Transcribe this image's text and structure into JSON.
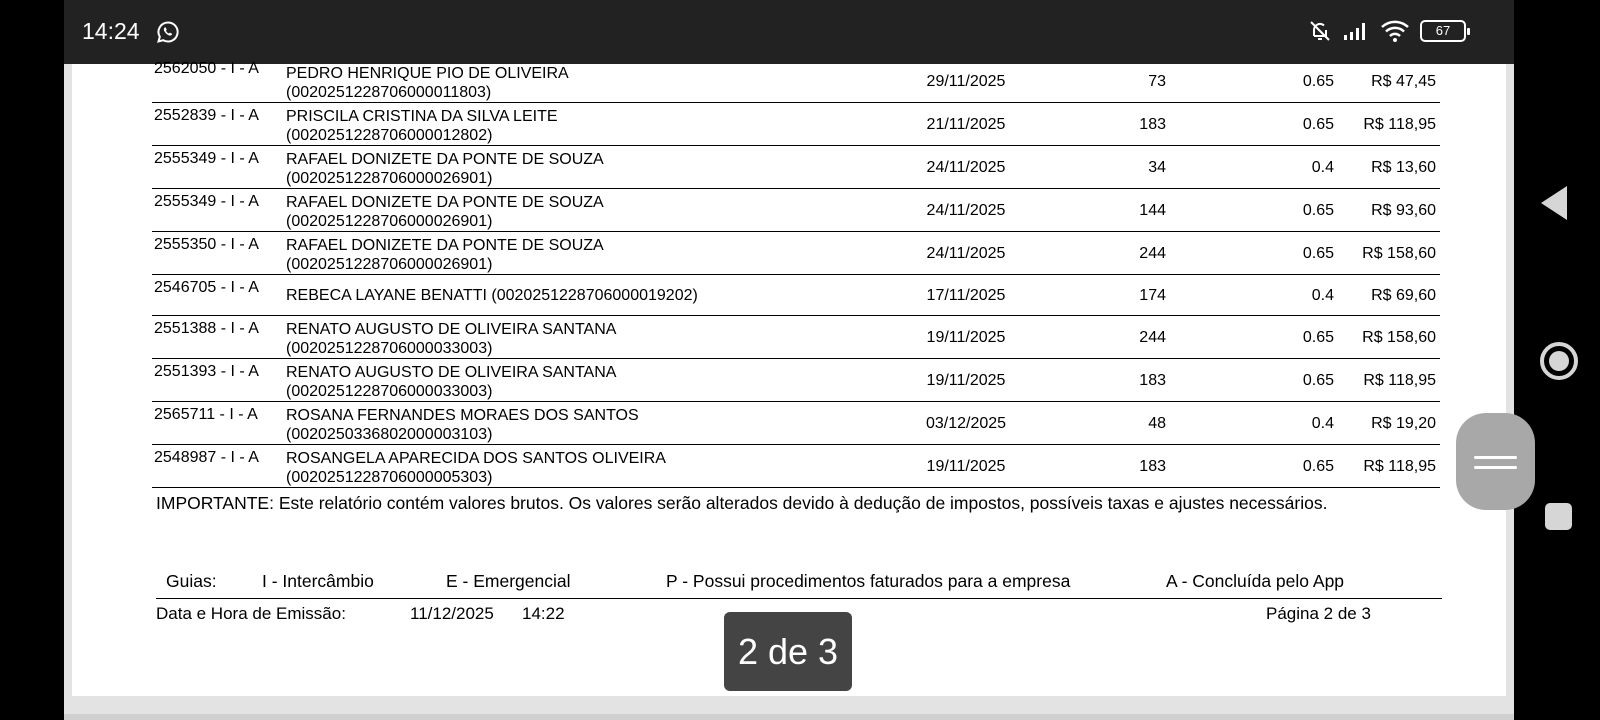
{
  "status_bar": {
    "time": "14:24",
    "battery": "67",
    "icons": [
      "whatsapp-icon",
      "bell-off-icon",
      "signal-icon",
      "wifi-icon",
      "battery-icon"
    ]
  },
  "rows": [
    {
      "code": "2562050 - I  - A",
      "name": "PEDRO HENRIQUE PIO DE OLIVEIRA",
      "card": "(0020251228706000011803)",
      "date": "29/11/2025",
      "qty": "73",
      "rate": "0.65",
      "value": "R$ 47,45"
    },
    {
      "code": "2552839 - I  - A",
      "name": "PRISCILA CRISTINA DA SILVA LEITE",
      "card": "(0020251228706000012802)",
      "date": "21/11/2025",
      "qty": "183",
      "rate": "0.65",
      "value": "R$ 118,95"
    },
    {
      "code": "2555349 - I  - A",
      "name": "RAFAEL DONIZETE DA PONTE DE SOUZA",
      "card": "(0020251228706000026901)",
      "date": "24/11/2025",
      "qty": "34",
      "rate": "0.4",
      "value": "R$ 13,60"
    },
    {
      "code": "2555349 - I  - A",
      "name": "RAFAEL DONIZETE DA PONTE DE SOUZA",
      "card": "(0020251228706000026901)",
      "date": "24/11/2025",
      "qty": "144",
      "rate": "0.65",
      "value": "R$ 93,60"
    },
    {
      "code": "2555350 - I  - A",
      "name": "RAFAEL DONIZETE DA PONTE DE SOUZA",
      "card": "(0020251228706000026901)",
      "date": "24/11/2025",
      "qty": "244",
      "rate": "0.65",
      "value": "R$ 158,60"
    },
    {
      "code": "2546705 - I  - A",
      "name": "REBECA LAYANE BENATTI (0020251228706000019202)",
      "card": "",
      "date": "17/11/2025",
      "qty": "174",
      "rate": "0.4",
      "value": "R$ 69,60"
    },
    {
      "code": "2551388 - I  - A",
      "name": "RENATO AUGUSTO DE OLIVEIRA SANTANA",
      "card": "(0020251228706000033003)",
      "date": "19/11/2025",
      "qty": "244",
      "rate": "0.65",
      "value": "R$ 158,60"
    },
    {
      "code": "2551393 - I  - A",
      "name": "RENATO AUGUSTO DE OLIVEIRA SANTANA",
      "card": "(0020251228706000033003)",
      "date": "19/11/2025",
      "qty": "183",
      "rate": "0.65",
      "value": "R$ 118,95"
    },
    {
      "code": "2565711 - I  - A",
      "name": "ROSANA FERNANDES MORAES DOS SANTOS",
      "card": "(0020250336802000003103)",
      "date": "03/12/2025",
      "qty": "48",
      "rate": "0.4",
      "value": "R$ 19,20"
    },
    {
      "code": "2548987 - I  - A",
      "name": "ROSANGELA APARECIDA DOS SANTOS OLIVEIRA",
      "card": "(0020251228706000005303)",
      "date": "19/11/2025",
      "qty": "183",
      "rate": "0.65",
      "value": "R$ 118,95"
    }
  ],
  "important": "IMPORTANTE: Este relatório contém valores brutos. Os valores serão alterados devido à dedução de impostos, possíveis taxas e ajustes necessários.",
  "legend": {
    "label": "Guias:",
    "i": "I - Intercâmbio",
    "e": "E - Emergencial",
    "p": "P - Possui procedimentos faturados para a empresa",
    "a": "A - Concluída pelo App"
  },
  "footer": {
    "emission_label": "Data e Hora de Emissão:",
    "emission_date": "11/12/2025",
    "emission_time": "14:22",
    "page_label": "Página 2 de 3"
  },
  "page_indicator": "2 de 3",
  "nav": {
    "icons": [
      "back-icon",
      "home-icon",
      "recents-icon",
      "scroll-handle"
    ]
  }
}
